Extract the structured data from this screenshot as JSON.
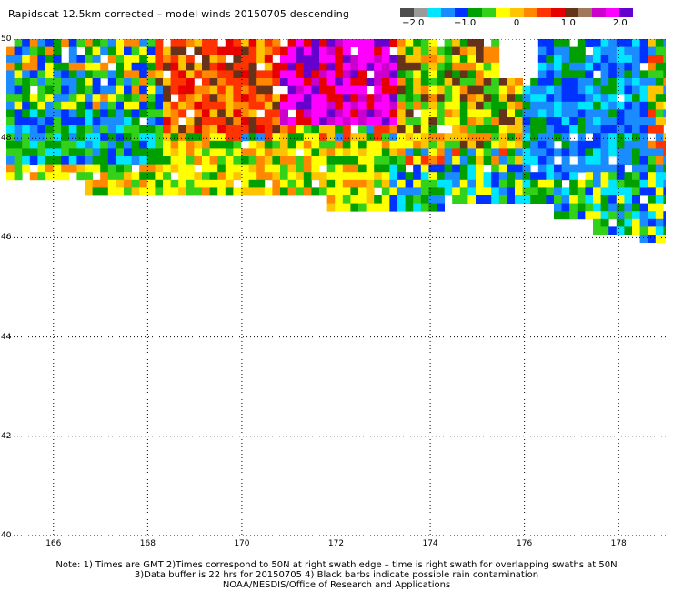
{
  "title": "Rapidscat 12.5km corrected – model winds 20150705 descending",
  "colorbar": {
    "colors": [
      "#4d4d4d",
      "#9a9a9a",
      "#00e5ff",
      "#1a8cff",
      "#0033ff",
      "#00a000",
      "#33d11a",
      "#ffff00",
      "#ffc400",
      "#ff8800",
      "#ff3300",
      "#e60000",
      "#66331a",
      "#a0785a",
      "#cc00cc",
      "#ff00ff",
      "#6600cc"
    ],
    "labels": [
      {
        "text": "−2.0",
        "value": -2.0
      },
      {
        "text": "−1.0",
        "value": -1.0
      },
      {
        "text": "0",
        "value": 0.0
      },
      {
        "text": "1.0",
        "value": 1.0
      },
      {
        "text": "2.0",
        "value": 2.0
      }
    ],
    "range": [
      -2.25,
      2.25
    ]
  },
  "map": {
    "lat_range": [
      40,
      50
    ],
    "lon_range": [
      165.0,
      179.0
    ],
    "lat_ticks": [
      "40",
      "42",
      "44",
      "46",
      "48",
      "50"
    ],
    "lon_ticks": [
      "166",
      "168",
      "170",
      "172",
      "174",
      "176",
      "178"
    ],
    "grid_style": "dotted",
    "swath_lat_min": 47.3,
    "swath_lat_max": 50
  },
  "notes": [
    "Note: 1) Times are GMT 2)Times correspond to 50N at right swath edge – time is right swath for overlapping swaths at 50N",
    "3)Data buffer is 22 hrs for 20150705 4) Black barbs indicate possible rain contamination",
    "NOAA/NESDIS/Office of Research and Applications"
  ]
}
